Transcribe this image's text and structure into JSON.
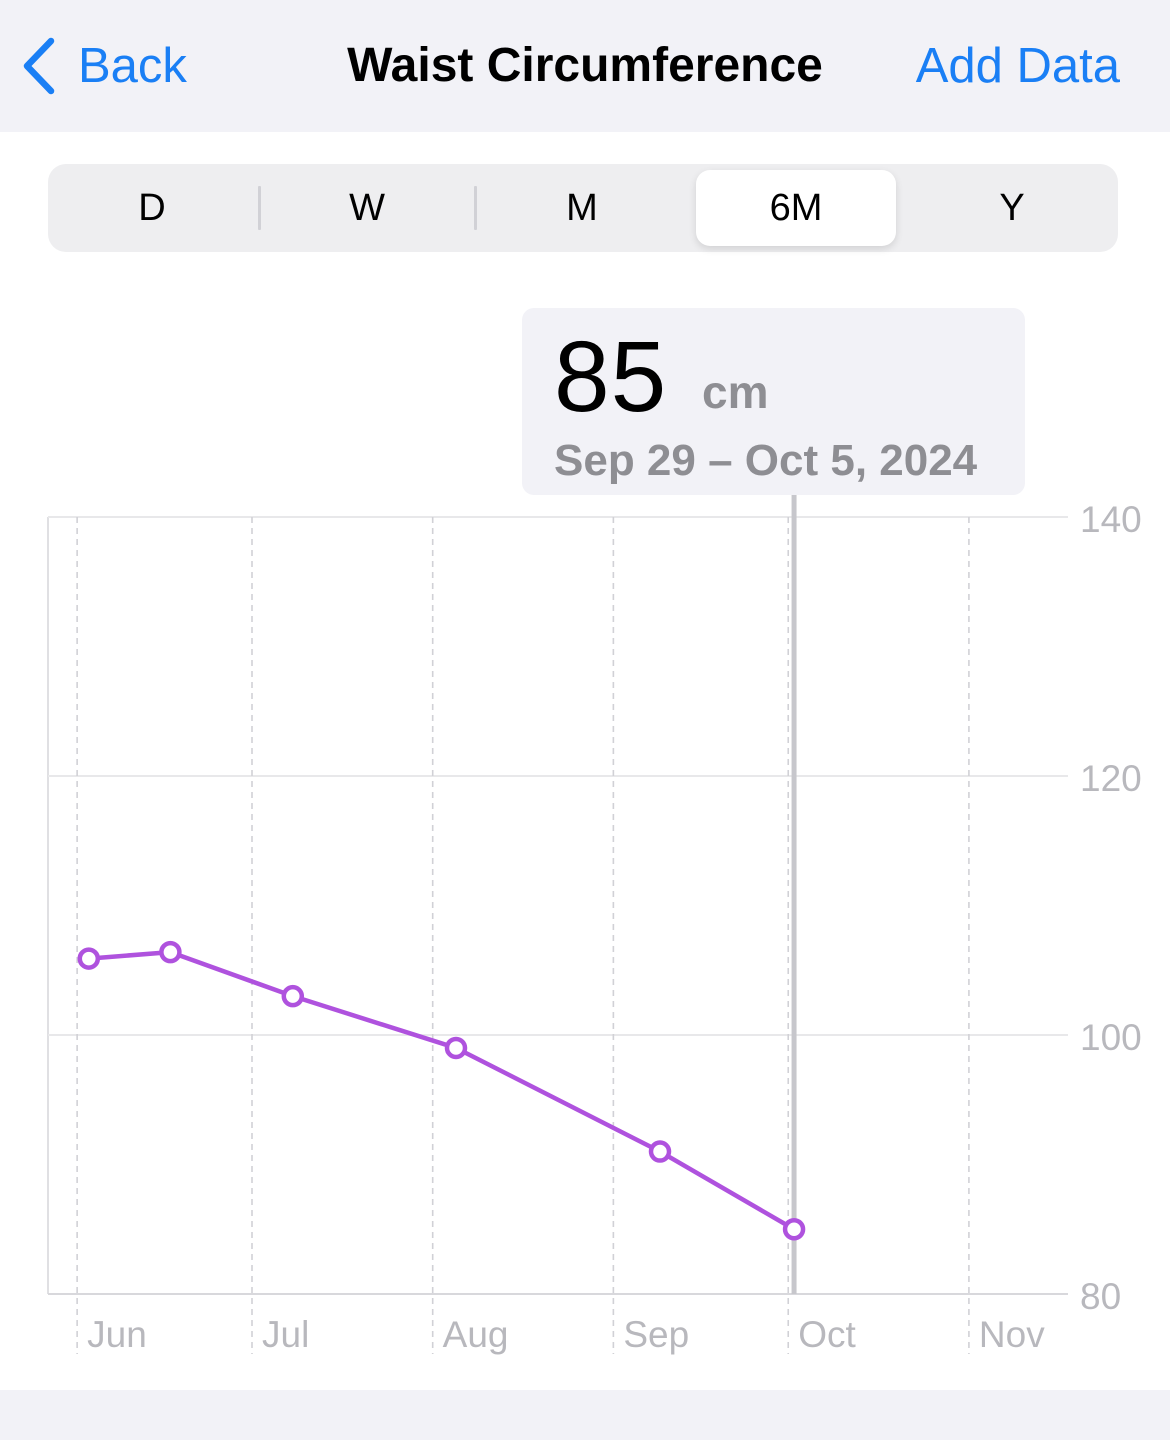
{
  "nav": {
    "back_label": "Back",
    "title": "Waist Circumference",
    "add_data_label": "Add Data",
    "accent_color": "#1a7ff5"
  },
  "segments": {
    "options": [
      "D",
      "W",
      "M",
      "6M",
      "Y"
    ],
    "selected": "6M"
  },
  "selection": {
    "value": "85",
    "unit": "cm",
    "date_range": "Sep 29 – Oct 5, 2024"
  },
  "chart_data": {
    "type": "line",
    "title": "",
    "xlabel": "",
    "ylabel": "",
    "x_ticks": [
      "Jun",
      "Jul",
      "Aug",
      "Sep",
      "Oct",
      "Nov"
    ],
    "y_ticks": [
      140,
      120,
      100,
      80
    ],
    "ylim": [
      80,
      140
    ],
    "x_domain": [
      "2024-05-27",
      "2024-11-18"
    ],
    "grid": true,
    "line_color": "#af52de",
    "selected_point": "2024-10-02",
    "series": [
      {
        "x": [
          "2024-06-03",
          "2024-06-17",
          "2024-07-08",
          "2024-08-05",
          "2024-09-09",
          "2024-10-02"
        ],
        "y": [
          105.9,
          106.4,
          103.0,
          99.0,
          91.0,
          85.0
        ]
      }
    ]
  }
}
